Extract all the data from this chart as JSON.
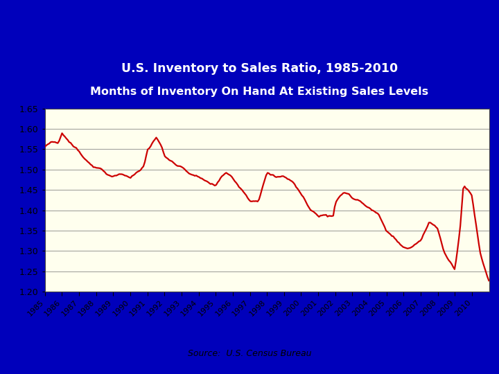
{
  "title_line1": "U.S. Inventory to Sales Ratio, 1985-2010",
  "title_line2": "Months of Inventory On Hand At Existing Sales Levels",
  "source": "Source:  U.S. Census Bureau",
  "line_color": "#CC0000",
  "background_color": "#FFFFEE",
  "outer_background": "#0000BB",
  "title_bg": "#000000",
  "title_text_color": "#FFFFFF",
  "ylim": [
    1.2,
    1.65
  ],
  "yticks": [
    1.2,
    1.25,
    1.3,
    1.35,
    1.4,
    1.45,
    1.5,
    1.55,
    1.6,
    1.65
  ],
  "xtick_labels": [
    "1985",
    "1986",
    "1987",
    "1988",
    "1989",
    "1990",
    "1991",
    "1992",
    "1993",
    "1994",
    "1995",
    "1996",
    "1997",
    "1998",
    "1999",
    "2000",
    "2001",
    "2002",
    "2003",
    "2004",
    "2005",
    "2006",
    "2007",
    "2008",
    "2009",
    "2010"
  ],
  "key_years": [
    1985.0,
    1985.4,
    1985.8,
    1986.0,
    1986.3,
    1986.7,
    1987.0,
    1987.5,
    1988.0,
    1988.5,
    1989.0,
    1989.5,
    1990.0,
    1990.4,
    1990.8,
    1991.0,
    1991.2,
    1991.5,
    1991.8,
    1992.0,
    1992.3,
    1992.7,
    1993.0,
    1993.5,
    1994.0,
    1994.5,
    1995.0,
    1995.3,
    1995.6,
    1995.9,
    1996.0,
    1996.5,
    1997.0,
    1997.5,
    1998.0,
    1998.3,
    1998.6,
    1999.0,
    1999.5,
    2000.0,
    2000.5,
    2001.0,
    2001.3,
    2001.6,
    2001.9,
    2002.0,
    2002.5,
    2002.8,
    2003.0,
    2003.5,
    2004.0,
    2004.5,
    2005.0,
    2005.5,
    2006.0,
    2006.2,
    2006.5,
    2007.0,
    2007.5,
    2008.0,
    2008.3,
    2008.5,
    2009.0,
    2009.3,
    2009.5,
    2009.8,
    2010.0,
    2010.5,
    2010.99
  ],
  "key_values": [
    1.555,
    1.57,
    1.565,
    1.59,
    1.575,
    1.555,
    1.545,
    1.52,
    1.505,
    1.495,
    1.48,
    1.49,
    1.48,
    1.495,
    1.51,
    1.545,
    1.555,
    1.58,
    1.56,
    1.535,
    1.52,
    1.51,
    1.505,
    1.49,
    1.48,
    1.47,
    1.46,
    1.48,
    1.49,
    1.485,
    1.48,
    1.455,
    1.425,
    1.425,
    1.49,
    1.485,
    1.48,
    1.485,
    1.47,
    1.44,
    1.405,
    1.385,
    1.39,
    1.385,
    1.39,
    1.42,
    1.445,
    1.44,
    1.43,
    1.42,
    1.405,
    1.39,
    1.35,
    1.33,
    1.31,
    1.305,
    1.31,
    1.325,
    1.37,
    1.355,
    1.31,
    1.29,
    1.255,
    1.35,
    1.46,
    1.445,
    1.435,
    1.29,
    1.23
  ]
}
